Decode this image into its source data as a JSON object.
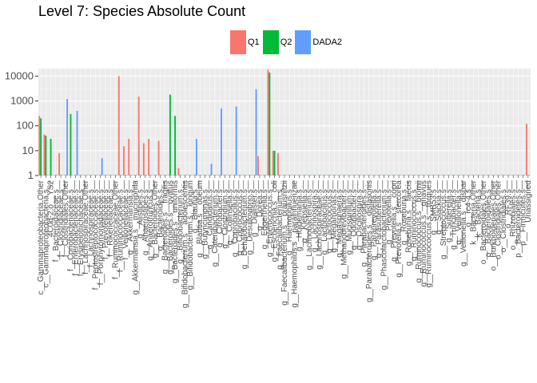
{
  "chart_data": {
    "type": "bar",
    "title": "Level 7: Species Absolute Count",
    "xlabel": "",
    "ylabel": "",
    "y_scale": "log10",
    "ylim": [
      1,
      20000
    ],
    "y_ticks": [
      1,
      10,
      100,
      1000,
      10000
    ],
    "y_tick_labels": [
      "1",
      "10",
      "100",
      "1000",
      "10000"
    ],
    "grid": true,
    "legend_position": "top",
    "colors": {
      "Q1": "#F8766D",
      "Q2": "#00BA38",
      "DADA2": "#619CFF"
    },
    "series_names": [
      "Q1",
      "Q2",
      "DADA2"
    ],
    "categories": [
      "c__Gammaproteobacteria.Other",
      "c__Gammaproteobacteria.s__",
      "4C0d-2.o__YS2",
      "f__Bacteroidaceae.s__",
      "f__Clostridiaceae.s__",
      "f__Clostridiales.Other",
      "f__Coriobacteriaceae.s__",
      "f__Enterobacteriaceae.s__",
      "f__Erysipelotrichaceae.s__",
      "f__Lachnospiraceae.Other",
      "f__Lachnospiraceae.s__",
      "f__Peptostreptococcaceae.s__",
      "f__Porphyromonadaceae.s__",
      "f__Prevotellaceae.s__",
      "f__Rikenellaceae.s__",
      "f__Ruminococcaceae.Other",
      "f__Ruminococcaceae.s__",
      "f__Veillonellaceae.s__",
      "g__Akkermansia.s__",
      "g__Akkermansia.s__muciniphila",
      "g__Alistipes.s__",
      "g__Anaerostipes.s__",
      "g__Anaerotruncus.s__",
      "g__Bacteroides.Other",
      "g__Bacteroides.s__",
      "g__Bacteroides.s__fragilis",
      "g__Bacteroides.s__ovatus",
      "g__Bacteroides.s__uniformis",
      "g__Bifidobacterium.s__",
      "g__Bifidobacterium.s__adolescentis",
      "g__Bifidobacterium.s__longum",
      "g__Blautia.s__",
      "g__Blautia.s__obeum",
      "g__Butyricimonas.s__",
      "g__Candidatus.s__",
      "g__Catenibacterium.s__",
      "g__Citrobacter.s__",
      "g__Clostridium.s__",
      "g__Collinsella.s__",
      "g__Coprobacillus.s__",
      "g__Coprococcus.s__",
      "g__Dehalobacterium.s__",
      "g__Desulfovibrio.s__",
      "g__Dialister.s__",
      "g__Dorea.s__",
      "g__Eggerthella.s__",
      "g__Enterococcus.s__",
      "g__Escherichia.s__coli",
      "g__Faecalibacterium.s__",
      "g__Faecalibacterium.s__prausnitzii",
      "g__Haemophilus.s__",
      "g__Haemophilus.s__parainfluenzae",
      "g__Holdemania.s__",
      "g__Klebsiella.s__",
      "g__Lachnobacterium.s__",
      "g__Lachnospira.s__",
      "g__Lachnospiraceae.s__",
      "g__Lactobacillus.s__",
      "g__Lactococcus.s__",
      "g__Megamonas.s__",
      "g__Megasphaera.s__",
      "g__Methanobrevibacter.s__",
      "g__Mucispirillum.s__",
      "g__Odoribacter.s__",
      "g__Oscillospira.s__",
      "g__Parabacteroides.s__",
      "g__Parabacteroides.s__distasonis",
      "g__Paraprevotella.s__",
      "g__Parasutterella.s__",
      "g__Phascolarctobacterium.s__",
      "g__Prevotella.s__",
      "g__Prevotella.s__copri",
      "g__Prevotella.s__stercorea",
      "g__Roseburia.s__",
      "g__Roseburia.s__faecis",
      "g__Ruminococcus.s__",
      "g__Ruminococcus.s__bromii",
      "g__Ruminococcus.s__gnavus",
      "g__Ruminococcus.s__torques",
      "g__SMB53.s__",
      "g__Slackia.s__",
      "g__Streptococcus.s__",
      "g__Sutterella.s__",
      "g__Turicibacter.s__",
      "g__Veillonella.s__",
      "g__Veillonella.s__dispar",
      "g__rc4-4.s__",
      "k__Bacteria.Other",
      "k__Bacteria.s__",
      "o__Bacteroidales.Other",
      "o__Bacteroidales.s__",
      "o__Burkholderiales.Other",
      "o__Clostridiales.Other",
      "o__Clostridiales.s__",
      "o__RF39.s__",
      "o__Rhizobiales.s__",
      "p__Bacteroidetes.s__",
      "p__Firmicutes.s__",
      "Unassigned"
    ],
    "series": [
      {
        "name": "Q1",
        "values": [
          250,
          45,
          1,
          1,
          8,
          1,
          1,
          1,
          1,
          1,
          1,
          1,
          1,
          1,
          1,
          1,
          10000,
          15,
          30,
          1,
          1500,
          20,
          30,
          1,
          25,
          1,
          1,
          1,
          2,
          1,
          1,
          1,
          1,
          1,
          1,
          1,
          1,
          1,
          1,
          1,
          1,
          1,
          1,
          1,
          6,
          1,
          18000,
          10,
          8,
          1,
          1,
          1,
          1,
          1,
          1,
          1,
          1,
          1,
          1,
          1,
          1,
          1,
          1,
          1,
          1,
          1,
          1,
          1,
          1,
          1,
          1,
          1,
          1,
          1,
          1,
          1,
          1,
          1,
          1,
          1,
          1,
          1,
          1,
          1,
          1,
          1,
          1,
          1,
          1,
          1,
          1,
          1,
          1,
          1,
          1,
          1,
          1,
          1,
          120
        ]
      },
      {
        "name": "Q2",
        "values": [
          200,
          40,
          30,
          1,
          1,
          1,
          300,
          1,
          1,
          1,
          1,
          1,
          1,
          1,
          1,
          1,
          1,
          1,
          1,
          1,
          1,
          1,
          1,
          1,
          1,
          1,
          1800,
          250,
          1,
          1,
          1,
          1,
          1,
          1,
          1,
          1,
          1,
          1,
          1,
          1,
          1,
          1,
          1,
          1,
          1,
          1,
          14000,
          10,
          1,
          1,
          1,
          1,
          1,
          1,
          1,
          1,
          1,
          1,
          1,
          1,
          1,
          1,
          1,
          1,
          1,
          1,
          1,
          1,
          1,
          1,
          1,
          1,
          1,
          1,
          1,
          1,
          1,
          1,
          1,
          1,
          1,
          1,
          1,
          1,
          1,
          1,
          1,
          1,
          1,
          1,
          1,
          1,
          1,
          1,
          1,
          1,
          1,
          1,
          1
        ]
      },
      {
        "name": "DADA2",
        "values": [
          1,
          1,
          1,
          1,
          1,
          1200,
          1,
          400,
          1,
          1,
          1,
          1,
          5,
          1,
          1,
          1,
          1,
          1,
          1,
          1,
          1,
          1,
          1,
          1,
          1,
          1,
          1,
          1,
          1,
          1,
          1,
          30,
          1,
          1,
          3,
          1,
          500,
          1,
          1,
          600,
          1,
          1,
          1,
          3000,
          1,
          1,
          1,
          1,
          1,
          1,
          1,
          1,
          1,
          1,
          1,
          1,
          1,
          1,
          1,
          1,
          1,
          1,
          1,
          1,
          1,
          1,
          1,
          1,
          1,
          1,
          1,
          1,
          1,
          1,
          1,
          1,
          1,
          1,
          1,
          1,
          1,
          1,
          1,
          1,
          1,
          1,
          1,
          1,
          1,
          1,
          1,
          1,
          1,
          1,
          1,
          1,
          1,
          1,
          1
        ]
      }
    ]
  }
}
